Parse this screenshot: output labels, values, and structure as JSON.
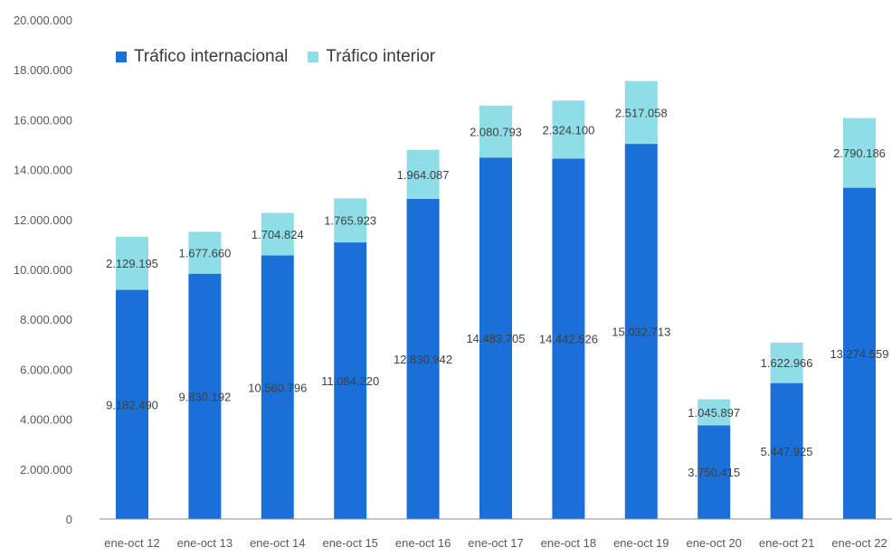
{
  "chart_data": {
    "type": "bar",
    "stacked": true,
    "categories": [
      "ene-oct 12",
      "ene-oct 13",
      "ene-oct 14",
      "ene-oct 15",
      "ene-oct 16",
      "ene-oct 17",
      "ene-oct 18",
      "ene-oct 19",
      "ene-oct 20",
      "ene-oct 21",
      "ene-oct 22"
    ],
    "series": [
      {
        "name": "Tráfico internacional",
        "color": "#1a6fd8",
        "values": [
          9182490,
          9830192,
          10560796,
          11084220,
          12830942,
          14483705,
          14442526,
          15032713,
          3750415,
          5447925,
          13274559
        ],
        "labels": [
          "9.182.490",
          "9.830.192",
          "10.560.796",
          "11.084.220",
          "12.830.942",
          "14.483.705",
          "14.442.526",
          "15.032.713",
          "3.750.415",
          "5.447.925",
          "13.274.559"
        ]
      },
      {
        "name": "Tráfico interior",
        "color": "#8fdde6",
        "values": [
          2129195,
          1677660,
          1704824,
          1765923,
          1964087,
          2080793,
          2324100,
          2517058,
          1045897,
          1622966,
          2790186
        ],
        "labels": [
          "2.129.195",
          "1.677.660",
          "1.704.824",
          "1.765.923",
          "1.964.087",
          "2.080.793",
          "2.324.100",
          "2.517.058",
          "1.045.897",
          "1.622.966",
          "2.790.186"
        ]
      }
    ],
    "ylim": [
      0,
      20000000
    ],
    "yticks": [
      "0",
      "2.000.000",
      "4.000.000",
      "6.000.000",
      "8.000.000",
      "10.000.000",
      "12.000.000",
      "14.000.000",
      "16.000.000",
      "18.000.000",
      "20.000.000"
    ],
    "grid": false,
    "legend": "top-left"
  }
}
